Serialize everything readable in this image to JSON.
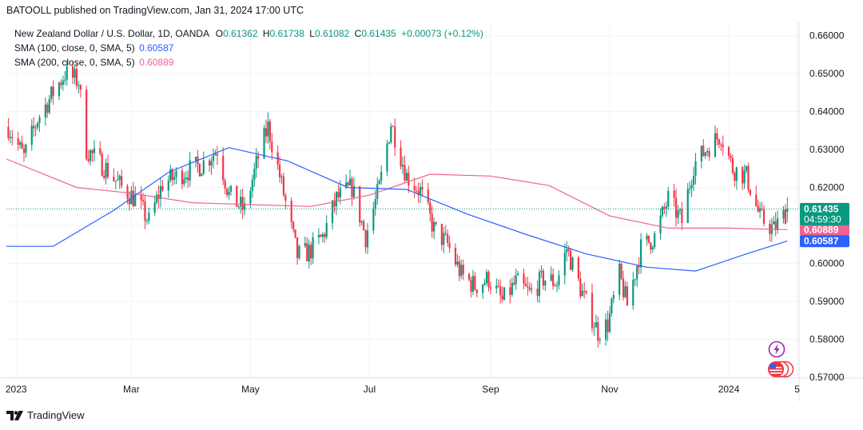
{
  "publisher": "BATOOLL published on TradingView.com, Jan 31, 2024 17:00 UTC",
  "legend": {
    "symbol": "New Zealand Dollar / U.S. Dollar, 1D, OANDA",
    "o_label": "O",
    "o": "0.61362",
    "h_label": "H",
    "h": "0.61738",
    "l_label": "L",
    "l": "0.61082",
    "c_label": "C",
    "c": "0.61435",
    "change": "+0.00073 (+0.12%)",
    "sma100_label": "SMA (100, close, 0, SMA, 5)",
    "sma100_value": "0.60587",
    "sma200_label": "SMA (200, close, 0, SMA, 5)",
    "sma200_value": "0.60889"
  },
  "footer": {
    "brand": "TradingView"
  },
  "colors": {
    "up": "#089981",
    "down": "#f23645",
    "sma100": "#2962ff",
    "sma200": "#f06292",
    "grid": "#f0f3fa",
    "axis_text": "#131722",
    "price_line": "#089981"
  },
  "icons": {
    "flash": "lightning-icon",
    "event": "us-flag-icon"
  },
  "chart_data": {
    "type": "candlestick",
    "x_labels": [
      "2023",
      "Mar",
      "May",
      "Jul",
      "Sep",
      "Nov",
      "2024",
      "5"
    ],
    "x_label_dates": [
      "2023-01-01",
      "2023-03-01",
      "2023-05-01",
      "2023-07-01",
      "2023-09-01",
      "2023-11-01",
      "2024-01-01",
      "2024-02-05"
    ],
    "x_range": [
      "2022-12-27",
      "2024-02-06"
    ],
    "y_ticks": [
      "0.66000",
      "0.65000",
      "0.64000",
      "0.63000",
      "0.62000",
      "0.61000",
      "0.60000",
      "0.59000",
      "0.58000",
      "0.57000"
    ],
    "y_range": [
      0.5698,
      0.6635
    ],
    "last_price": "0.61435",
    "countdown": "04:59:30",
    "sma200_badge": "0.60889",
    "sma100_badge": "0.60587",
    "close_path": [
      {
        "d": "2022-12-28",
        "c": 0.636
      },
      {
        "d": "2023-01-05",
        "c": 0.628
      },
      {
        "d": "2023-01-12",
        "c": 0.638
      },
      {
        "d": "2023-01-20",
        "c": 0.645
      },
      {
        "d": "2023-01-26",
        "c": 0.65
      },
      {
        "d": "2023-02-02",
        "c": 0.648
      },
      {
        "d": "2023-02-06",
        "c": 0.63
      },
      {
        "d": "2023-02-16",
        "c": 0.625
      },
      {
        "d": "2023-02-24",
        "c": 0.62
      },
      {
        "d": "2023-03-03",
        "c": 0.617
      },
      {
        "d": "2023-03-10",
        "c": 0.611
      },
      {
        "d": "2023-03-17",
        "c": 0.621
      },
      {
        "d": "2023-03-28",
        "c": 0.624
      },
      {
        "d": "2023-04-06",
        "c": 0.626
      },
      {
        "d": "2023-04-14",
        "c": 0.63
      },
      {
        "d": "2023-04-20",
        "c": 0.618
      },
      {
        "d": "2023-04-28",
        "c": 0.614
      },
      {
        "d": "2023-05-05",
        "c": 0.628
      },
      {
        "d": "2023-05-10",
        "c": 0.636
      },
      {
        "d": "2023-05-16",
        "c": 0.623
      },
      {
        "d": "2023-05-25",
        "c": 0.602
      },
      {
        "d": "2023-05-31",
        "c": 0.603
      },
      {
        "d": "2023-06-07",
        "c": 0.607
      },
      {
        "d": "2023-06-14",
        "c": 0.617
      },
      {
        "d": "2023-06-22",
        "c": 0.62
      },
      {
        "d": "2023-06-29",
        "c": 0.607
      },
      {
        "d": "2023-07-06",
        "c": 0.62
      },
      {
        "d": "2023-07-12",
        "c": 0.637
      },
      {
        "d": "2023-07-20",
        "c": 0.623
      },
      {
        "d": "2023-07-27",
        "c": 0.619
      },
      {
        "d": "2023-08-03",
        "c": 0.609
      },
      {
        "d": "2023-08-10",
        "c": 0.605
      },
      {
        "d": "2023-08-17",
        "c": 0.597
      },
      {
        "d": "2023-08-24",
        "c": 0.594
      },
      {
        "d": "2023-08-31",
        "c": 0.596
      },
      {
        "d": "2023-09-07",
        "c": 0.59
      },
      {
        "d": "2023-09-14",
        "c": 0.595
      },
      {
        "d": "2023-09-21",
        "c": 0.592
      },
      {
        "d": "2023-09-28",
        "c": 0.596
      },
      {
        "d": "2023-10-05",
        "c": 0.595
      },
      {
        "d": "2023-10-10",
        "c": 0.604
      },
      {
        "d": "2023-10-18",
        "c": 0.592
      },
      {
        "d": "2023-10-26",
        "c": 0.582
      },
      {
        "d": "2023-10-31",
        "c": 0.584
      },
      {
        "d": "2023-11-06",
        "c": 0.597
      },
      {
        "d": "2023-11-10",
        "c": 0.589
      },
      {
        "d": "2023-11-17",
        "c": 0.604
      },
      {
        "d": "2023-11-24",
        "c": 0.607
      },
      {
        "d": "2023-12-01",
        "c": 0.617
      },
      {
        "d": "2023-12-08",
        "c": 0.611
      },
      {
        "d": "2023-12-14",
        "c": 0.626
      },
      {
        "d": "2023-12-22",
        "c": 0.631
      },
      {
        "d": "2023-12-28",
        "c": 0.634
      },
      {
        "d": "2024-01-03",
        "c": 0.625
      },
      {
        "d": "2024-01-10",
        "c": 0.623
      },
      {
        "d": "2024-01-17",
        "c": 0.612
      },
      {
        "d": "2024-01-24",
        "c": 0.609
      },
      {
        "d": "2024-01-31",
        "c": 0.614
      }
    ],
    "sma100_path": [
      {
        "d": "2022-12-27",
        "c": 0.6045
      },
      {
        "d": "2023-01-20",
        "c": 0.6045
      },
      {
        "d": "2023-02-20",
        "c": 0.614
      },
      {
        "d": "2023-03-20",
        "c": 0.624
      },
      {
        "d": "2023-04-20",
        "c": 0.6305
      },
      {
        "d": "2023-05-20",
        "c": 0.627
      },
      {
        "d": "2023-06-20",
        "c": 0.62
      },
      {
        "d": "2023-07-20",
        "c": 0.6195
      },
      {
        "d": "2023-08-20",
        "c": 0.613
      },
      {
        "d": "2023-09-20",
        "c": 0.6075
      },
      {
        "d": "2023-10-20",
        "c": 0.6025
      },
      {
        "d": "2023-11-20",
        "c": 0.599
      },
      {
        "d": "2023-12-15",
        "c": 0.598
      },
      {
        "d": "2024-01-10",
        "c": 0.6025
      },
      {
        "d": "2024-01-31",
        "c": 0.6059
      }
    ],
    "sma200_path": [
      {
        "d": "2022-12-27",
        "c": 0.6275
      },
      {
        "d": "2023-02-01",
        "c": 0.62
      },
      {
        "d": "2023-03-01",
        "c": 0.6185
      },
      {
        "d": "2023-04-01",
        "c": 0.616
      },
      {
        "d": "2023-05-01",
        "c": 0.6155
      },
      {
        "d": "2023-06-01",
        "c": 0.615
      },
      {
        "d": "2023-07-01",
        "c": 0.618
      },
      {
        "d": "2023-08-01",
        "c": 0.6235
      },
      {
        "d": "2023-09-01",
        "c": 0.623
      },
      {
        "d": "2023-10-01",
        "c": 0.6205
      },
      {
        "d": "2023-11-01",
        "c": 0.6125
      },
      {
        "d": "2023-12-01",
        "c": 0.6093
      },
      {
        "d": "2024-01-01",
        "c": 0.6093
      },
      {
        "d": "2024-01-31",
        "c": 0.6089
      }
    ]
  }
}
